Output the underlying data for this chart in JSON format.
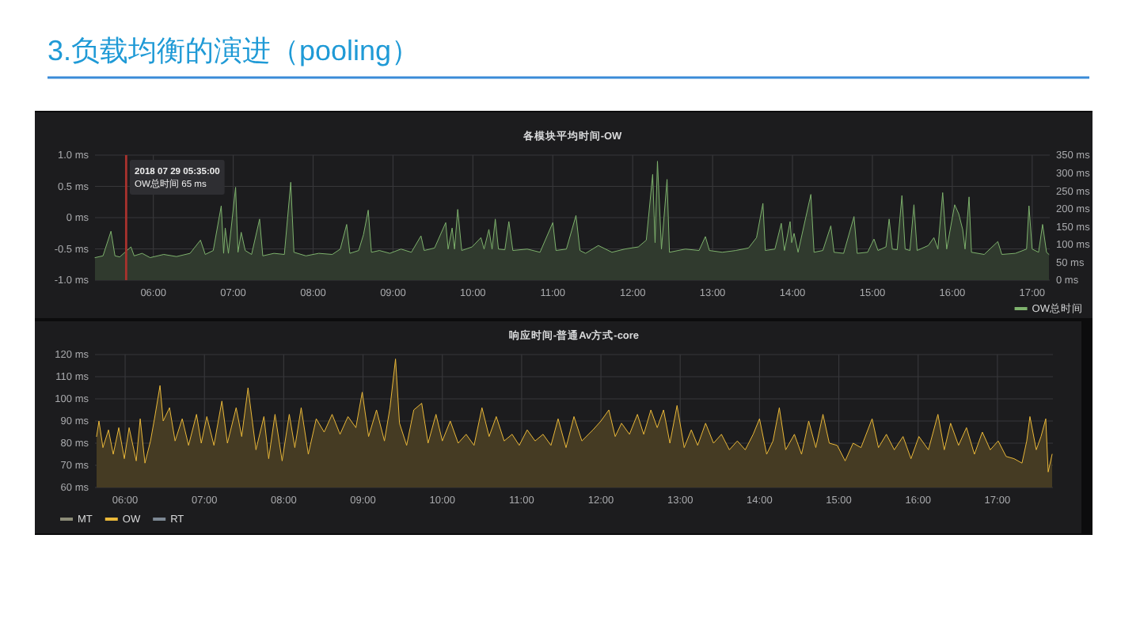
{
  "chart_data": [
    {
      "type": "area",
      "title": "3.负载均衡的演进（pooling）",
      "subtitle": "各模块平均时间-OW",
      "xlim": [
        5.27,
        17.22
      ],
      "xticks": [
        {
          "value": 6,
          "label": "06:00"
        },
        {
          "value": 7,
          "label": "07:00"
        },
        {
          "value": 8,
          "label": "08:00"
        },
        {
          "value": 9,
          "label": "09:00"
        },
        {
          "value": 10,
          "label": "10:00"
        },
        {
          "value": 11,
          "label": "11:00"
        },
        {
          "value": 12,
          "label": "12:00"
        },
        {
          "value": 13,
          "label": "13:00"
        },
        {
          "value": 14,
          "label": "14:00"
        },
        {
          "value": 15,
          "label": "15:00"
        },
        {
          "value": 16,
          "label": "16:00"
        },
        {
          "value": 17,
          "label": "17:00"
        }
      ],
      "ylim": [
        -1,
        1
      ],
      "yticks": [
        {
          "value": -1,
          "label": "-1.0 ms"
        },
        {
          "value": -0.5,
          "label": "-0.5 ms"
        },
        {
          "value": 0,
          "label": "0 ms"
        },
        {
          "value": 0.5,
          "label": "0.5 ms"
        },
        {
          "value": 1,
          "label": "1.0 ms"
        }
      ],
      "y2lim": [
        0,
        350
      ],
      "y2ticks": [
        {
          "value": 0,
          "label": "0 ms"
        },
        {
          "value": 50,
          "label": "50 ms"
        },
        {
          "value": 100,
          "label": "100 ms"
        },
        {
          "value": 150,
          "label": "150 ms"
        },
        {
          "value": 200,
          "label": "200 ms"
        },
        {
          "value": 250,
          "label": "250 ms"
        },
        {
          "value": 300,
          "label": "300 ms"
        },
        {
          "value": 350,
          "label": "350 ms"
        }
      ],
      "grid": true,
      "legend": "bottom right",
      "ref_lines": [
        {
          "axis": "x",
          "value": 5.66,
          "color": "#a8322d"
        }
      ],
      "annotations": [
        "2018 07 29 05:35:00",
        "OW总时间 65 ms"
      ],
      "series": [
        {
          "name": "OW总时间",
          "color": "#7eb26d",
          "axis": "y2",
          "x": [
            5.27,
            5.37,
            5.47,
            5.52,
            5.58,
            5.72,
            5.76,
            5.86,
            5.96,
            6.13,
            6.29,
            6.46,
            6.59,
            6.65,
            6.75,
            6.85,
            6.88,
            6.9,
            6.94,
            7.03,
            7.06,
            7.1,
            7.15,
            7.23,
            7.33,
            7.37,
            7.51,
            7.64,
            7.72,
            7.76,
            7.91,
            8.07,
            8.24,
            8.34,
            8.42,
            8.46,
            8.57,
            8.63,
            8.69,
            8.73,
            8.83,
            8.96,
            9.1,
            9.23,
            9.35,
            9.39,
            9.52,
            9.66,
            9.69,
            9.74,
            9.77,
            9.81,
            9.86,
            9.99,
            10.1,
            10.14,
            10.2,
            10.24,
            10.28,
            10.32,
            10.4,
            10.45,
            10.5,
            10.68,
            10.84,
            11.0,
            11.04,
            11.17,
            11.29,
            11.34,
            11.41,
            11.57,
            11.74,
            11.9,
            12.07,
            12.17,
            12.25,
            12.28,
            12.31,
            12.36,
            12.43,
            12.46,
            12.66,
            12.83,
            12.91,
            12.96,
            13.12,
            13.29,
            13.45,
            13.55,
            13.63,
            13.66,
            13.78,
            13.86,
            13.9,
            13.97,
            13.99,
            14.02,
            14.07,
            14.23,
            14.27,
            14.38,
            14.48,
            14.52,
            14.64,
            14.77,
            14.81,
            14.94,
            15.02,
            15.07,
            15.17,
            15.21,
            15.25,
            15.31,
            15.37,
            15.41,
            15.47,
            15.52,
            15.56,
            15.7,
            15.77,
            15.82,
            15.88,
            15.93,
            16.03,
            16.08,
            16.13,
            16.16,
            16.21,
            16.24,
            16.4,
            16.57,
            16.62,
            16.79,
            16.93,
            16.96,
            17.0,
            17.08,
            17.13,
            17.18,
            17.21
          ],
          "values": [
            63,
            68,
            137,
            68,
            65,
            93,
            68,
            75,
            63,
            72,
            66,
            75,
            112,
            72,
            83,
            208,
            75,
            146,
            75,
            260,
            78,
            134,
            83,
            72,
            171,
            68,
            75,
            72,
            274,
            78,
            68,
            75,
            72,
            87,
            156,
            75,
            83,
            127,
            196,
            78,
            83,
            75,
            87,
            78,
            124,
            83,
            90,
            161,
            87,
            146,
            87,
            198,
            83,
            93,
            119,
            87,
            142,
            87,
            171,
            87,
            85,
            164,
            83,
            87,
            78,
            161,
            83,
            87,
            181,
            83,
            75,
            97,
            78,
            87,
            93,
            112,
            296,
            105,
            333,
            87,
            282,
            78,
            87,
            83,
            122,
            83,
            78,
            83,
            90,
            119,
            215,
            83,
            87,
            159,
            83,
            164,
            105,
            131,
            78,
            240,
            78,
            83,
            152,
            78,
            75,
            178,
            75,
            78,
            115,
            83,
            93,
            171,
            87,
            85,
            237,
            87,
            83,
            211,
            83,
            97,
            119,
            87,
            245,
            87,
            211,
            186,
            142,
            87,
            233,
            78,
            72,
            108,
            72,
            75,
            87,
            208,
            87,
            78,
            156,
            78,
            72
          ]
        }
      ]
    },
    {
      "type": "area",
      "title": "响应时间-普通Av方式-core",
      "xlim": [
        5.62,
        17.7
      ],
      "xticks": [
        {
          "value": 6,
          "label": "06:00"
        },
        {
          "value": 7,
          "label": "07:00"
        },
        {
          "value": 8,
          "label": "08:00"
        },
        {
          "value": 9,
          "label": "09:00"
        },
        {
          "value": 10,
          "label": "10:00"
        },
        {
          "value": 11,
          "label": "11:00"
        },
        {
          "value": 12,
          "label": "12:00"
        },
        {
          "value": 13,
          "label": "13:00"
        },
        {
          "value": 14,
          "label": "14:00"
        },
        {
          "value": 15,
          "label": "15:00"
        },
        {
          "value": 16,
          "label": "16:00"
        },
        {
          "value": 17,
          "label": "17:00"
        }
      ],
      "ylim": [
        60,
        120
      ],
      "yticks": [
        {
          "value": 60,
          "label": "60 ms"
        },
        {
          "value": 70,
          "label": "70 ms"
        },
        {
          "value": 80,
          "label": "80 ms"
        },
        {
          "value": 90,
          "label": "90 ms"
        },
        {
          "value": 100,
          "label": "100 ms"
        },
        {
          "value": 110,
          "label": "110 ms"
        },
        {
          "value": 120,
          "label": "120 ms"
        }
      ],
      "grid": true,
      "legend": "bottom left",
      "series": [
        {
          "name": "MT",
          "color": "#8c8c78"
        },
        {
          "name": "OW",
          "color": "#eab839",
          "x": [
            5.64,
            5.67,
            5.72,
            5.79,
            5.85,
            5.92,
            5.99,
            6.05,
            6.14,
            6.19,
            6.25,
            6.32,
            6.37,
            6.44,
            6.48,
            6.56,
            6.63,
            6.72,
            6.8,
            6.9,
            6.96,
            7.03,
            7.12,
            7.22,
            7.29,
            7.4,
            7.47,
            7.55,
            7.65,
            7.75,
            7.81,
            7.89,
            7.98,
            8.07,
            8.14,
            8.22,
            8.31,
            8.41,
            8.51,
            8.61,
            8.71,
            8.81,
            8.91,
            8.99,
            9.07,
            9.17,
            9.27,
            9.34,
            9.41,
            9.46,
            9.55,
            9.64,
            9.74,
            9.82,
            9.92,
            10.0,
            10.1,
            10.2,
            10.3,
            10.4,
            10.5,
            10.59,
            10.68,
            10.78,
            10.88,
            10.97,
            11.07,
            11.17,
            11.27,
            11.37,
            11.46,
            11.56,
            11.66,
            11.76,
            11.9,
            12.0,
            12.1,
            12.18,
            12.26,
            12.36,
            12.46,
            12.54,
            12.63,
            12.71,
            12.79,
            12.87,
            12.96,
            13.05,
            13.14,
            13.22,
            13.32,
            13.42,
            13.52,
            13.62,
            13.72,
            13.82,
            13.92,
            14.0,
            14.09,
            14.17,
            14.25,
            14.33,
            14.44,
            14.53,
            14.62,
            14.71,
            14.8,
            14.88,
            14.98,
            15.08,
            15.18,
            15.28,
            15.42,
            15.5,
            15.6,
            15.7,
            15.81,
            15.91,
            16.01,
            16.13,
            16.25,
            16.33,
            16.41,
            16.51,
            16.61,
            16.71,
            16.81,
            16.91,
            17.01,
            17.11,
            17.21,
            17.31,
            17.37,
            17.41,
            17.49,
            17.55,
            17.61,
            17.64,
            17.69
          ],
          "values": [
            83,
            90,
            78,
            86,
            75,
            87,
            73,
            87,
            72,
            91,
            71,
            81,
            91,
            106,
            90,
            96,
            81,
            91,
            79,
            93,
            80,
            92,
            79,
            99,
            80,
            96,
            83,
            105,
            77,
            92,
            73,
            93,
            72,
            93,
            78,
            96,
            75,
            91,
            85,
            93,
            84,
            92,
            87,
            103,
            83,
            95,
            81,
            96,
            118,
            89,
            79,
            95,
            98,
            80,
            93,
            81,
            90,
            80,
            84,
            79,
            96,
            83,
            92,
            81,
            84,
            79,
            86,
            81,
            84,
            79,
            91,
            78,
            92,
            81,
            86,
            90,
            95,
            83,
            89,
            84,
            93,
            84,
            95,
            87,
            95,
            80,
            97,
            78,
            86,
            79,
            89,
            80,
            84,
            77,
            81,
            77,
            84,
            91,
            75,
            81,
            96,
            77,
            84,
            75,
            90,
            78,
            93,
            80,
            79,
            72,
            80,
            78,
            91,
            78,
            84,
            77,
            83,
            73,
            83,
            77,
            93,
            77,
            89,
            79,
            87,
            75,
            85,
            77,
            81,
            74,
            73,
            71,
            81,
            92,
            77,
            83,
            91,
            67,
            75
          ]
        },
        {
          "name": "RT",
          "color": "#7c8894"
        }
      ]
    }
  ]
}
